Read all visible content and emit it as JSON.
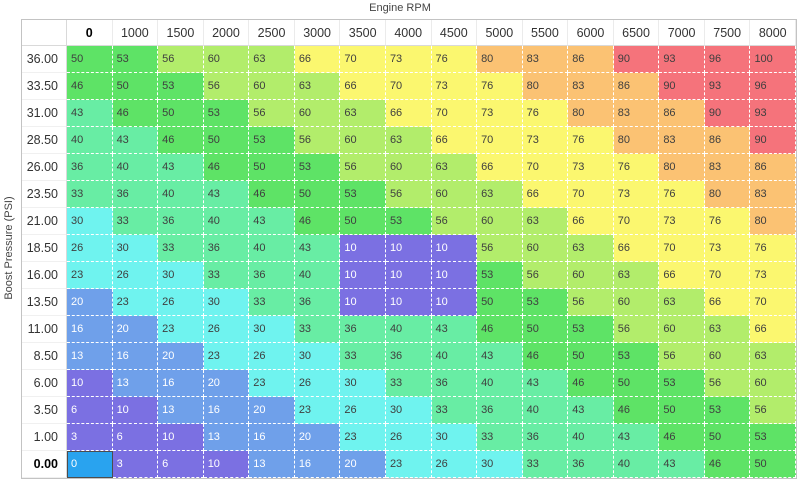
{
  "axis": {
    "x_title": "Engine RPM",
    "y_title": "Boost Pressure (PSI)"
  },
  "chart_data": {
    "type": "heatmap",
    "xlabel": "Engine RPM",
    "ylabel": "Boost Pressure (PSI)",
    "columns": [
      "0",
      "1000",
      "1500",
      "2000",
      "2500",
      "3000",
      "3500",
      "4000",
      "4500",
      "5000",
      "5500",
      "6000",
      "6500",
      "7000",
      "7500",
      "8000"
    ],
    "rows": [
      "36.00",
      "33.50",
      "31.00",
      "28.50",
      "26.00",
      "23.50",
      "21.00",
      "18.50",
      "16.00",
      "13.50",
      "11.00",
      "8.50",
      "6.00",
      "3.50",
      "1.00",
      "0.00"
    ],
    "values": [
      [
        50,
        53,
        56,
        60,
        63,
        66,
        70,
        73,
        76,
        80,
        83,
        86,
        90,
        93,
        96,
        100
      ],
      [
        46,
        50,
        53,
        56,
        60,
        63,
        66,
        70,
        73,
        76,
        80,
        83,
        86,
        90,
        93,
        96
      ],
      [
        43,
        46,
        50,
        53,
        56,
        60,
        63,
        66,
        70,
        73,
        76,
        80,
        83,
        86,
        90,
        93
      ],
      [
        40,
        43,
        46,
        50,
        53,
        56,
        60,
        63,
        66,
        70,
        73,
        76,
        80,
        83,
        86,
        90
      ],
      [
        36,
        40,
        43,
        46,
        50,
        53,
        56,
        60,
        63,
        66,
        70,
        73,
        76,
        80,
        83,
        86
      ],
      [
        33,
        36,
        40,
        43,
        46,
        50,
        53,
        56,
        60,
        63,
        66,
        70,
        73,
        76,
        80,
        83
      ],
      [
        30,
        33,
        36,
        40,
        43,
        46,
        50,
        53,
        56,
        60,
        63,
        66,
        70,
        73,
        76,
        80
      ],
      [
        26,
        30,
        33,
        36,
        40,
        43,
        10,
        10,
        10,
        56,
        60,
        63,
        66,
        70,
        73,
        76
      ],
      [
        23,
        26,
        30,
        33,
        36,
        40,
        10,
        10,
        10,
        53,
        56,
        60,
        63,
        66,
        70,
        73
      ],
      [
        20,
        23,
        26,
        30,
        33,
        36,
        10,
        10,
        10,
        50,
        53,
        56,
        60,
        63,
        66,
        70
      ],
      [
        16,
        20,
        23,
        26,
        30,
        33,
        36,
        40,
        43,
        46,
        50,
        53,
        56,
        60,
        63,
        66
      ],
      [
        13,
        16,
        20,
        23,
        26,
        30,
        33,
        36,
        40,
        43,
        46,
        50,
        53,
        56,
        60,
        63
      ],
      [
        10,
        13,
        16,
        20,
        23,
        26,
        30,
        33,
        36,
        40,
        43,
        46,
        50,
        53,
        56,
        60
      ],
      [
        6,
        10,
        13,
        16,
        20,
        23,
        26,
        30,
        33,
        36,
        40,
        43,
        46,
        50,
        53,
        56
      ],
      [
        3,
        6,
        10,
        13,
        16,
        20,
        23,
        26,
        30,
        33,
        36,
        40,
        43,
        46,
        50,
        53
      ],
      [
        0,
        3,
        6,
        10,
        13,
        16,
        20,
        23,
        26,
        30,
        33,
        36,
        40,
        43,
        46,
        50
      ]
    ],
    "value_range": [
      0,
      100
    ],
    "selected_cell": {
      "row_index": 15,
      "col_index": 0,
      "row_label": "0.00",
      "col_label": "0",
      "value": 0
    },
    "edited_region": {
      "row_labels": [
        "18.50",
        "16.00",
        "13.50"
      ],
      "col_labels": [
        "3500",
        "4000",
        "4500"
      ],
      "value": 10
    },
    "colors": {
      "band_size": 11,
      "bands": [
        "#7b70e2",
        "#6fa0ea",
        "#6ff3ef",
        "#68eda4",
        "#5ee366",
        "#b2ed6b",
        "#fbf76f",
        "#fbc273",
        "#f5737b"
      ],
      "light_text": "#ffffff",
      "dark_text": "#3f3f3f",
      "light_text_max_value": 20,
      "selected_cell_bg": "#29a3ef",
      "selected_cell_border": "#4d4d4d"
    }
  }
}
